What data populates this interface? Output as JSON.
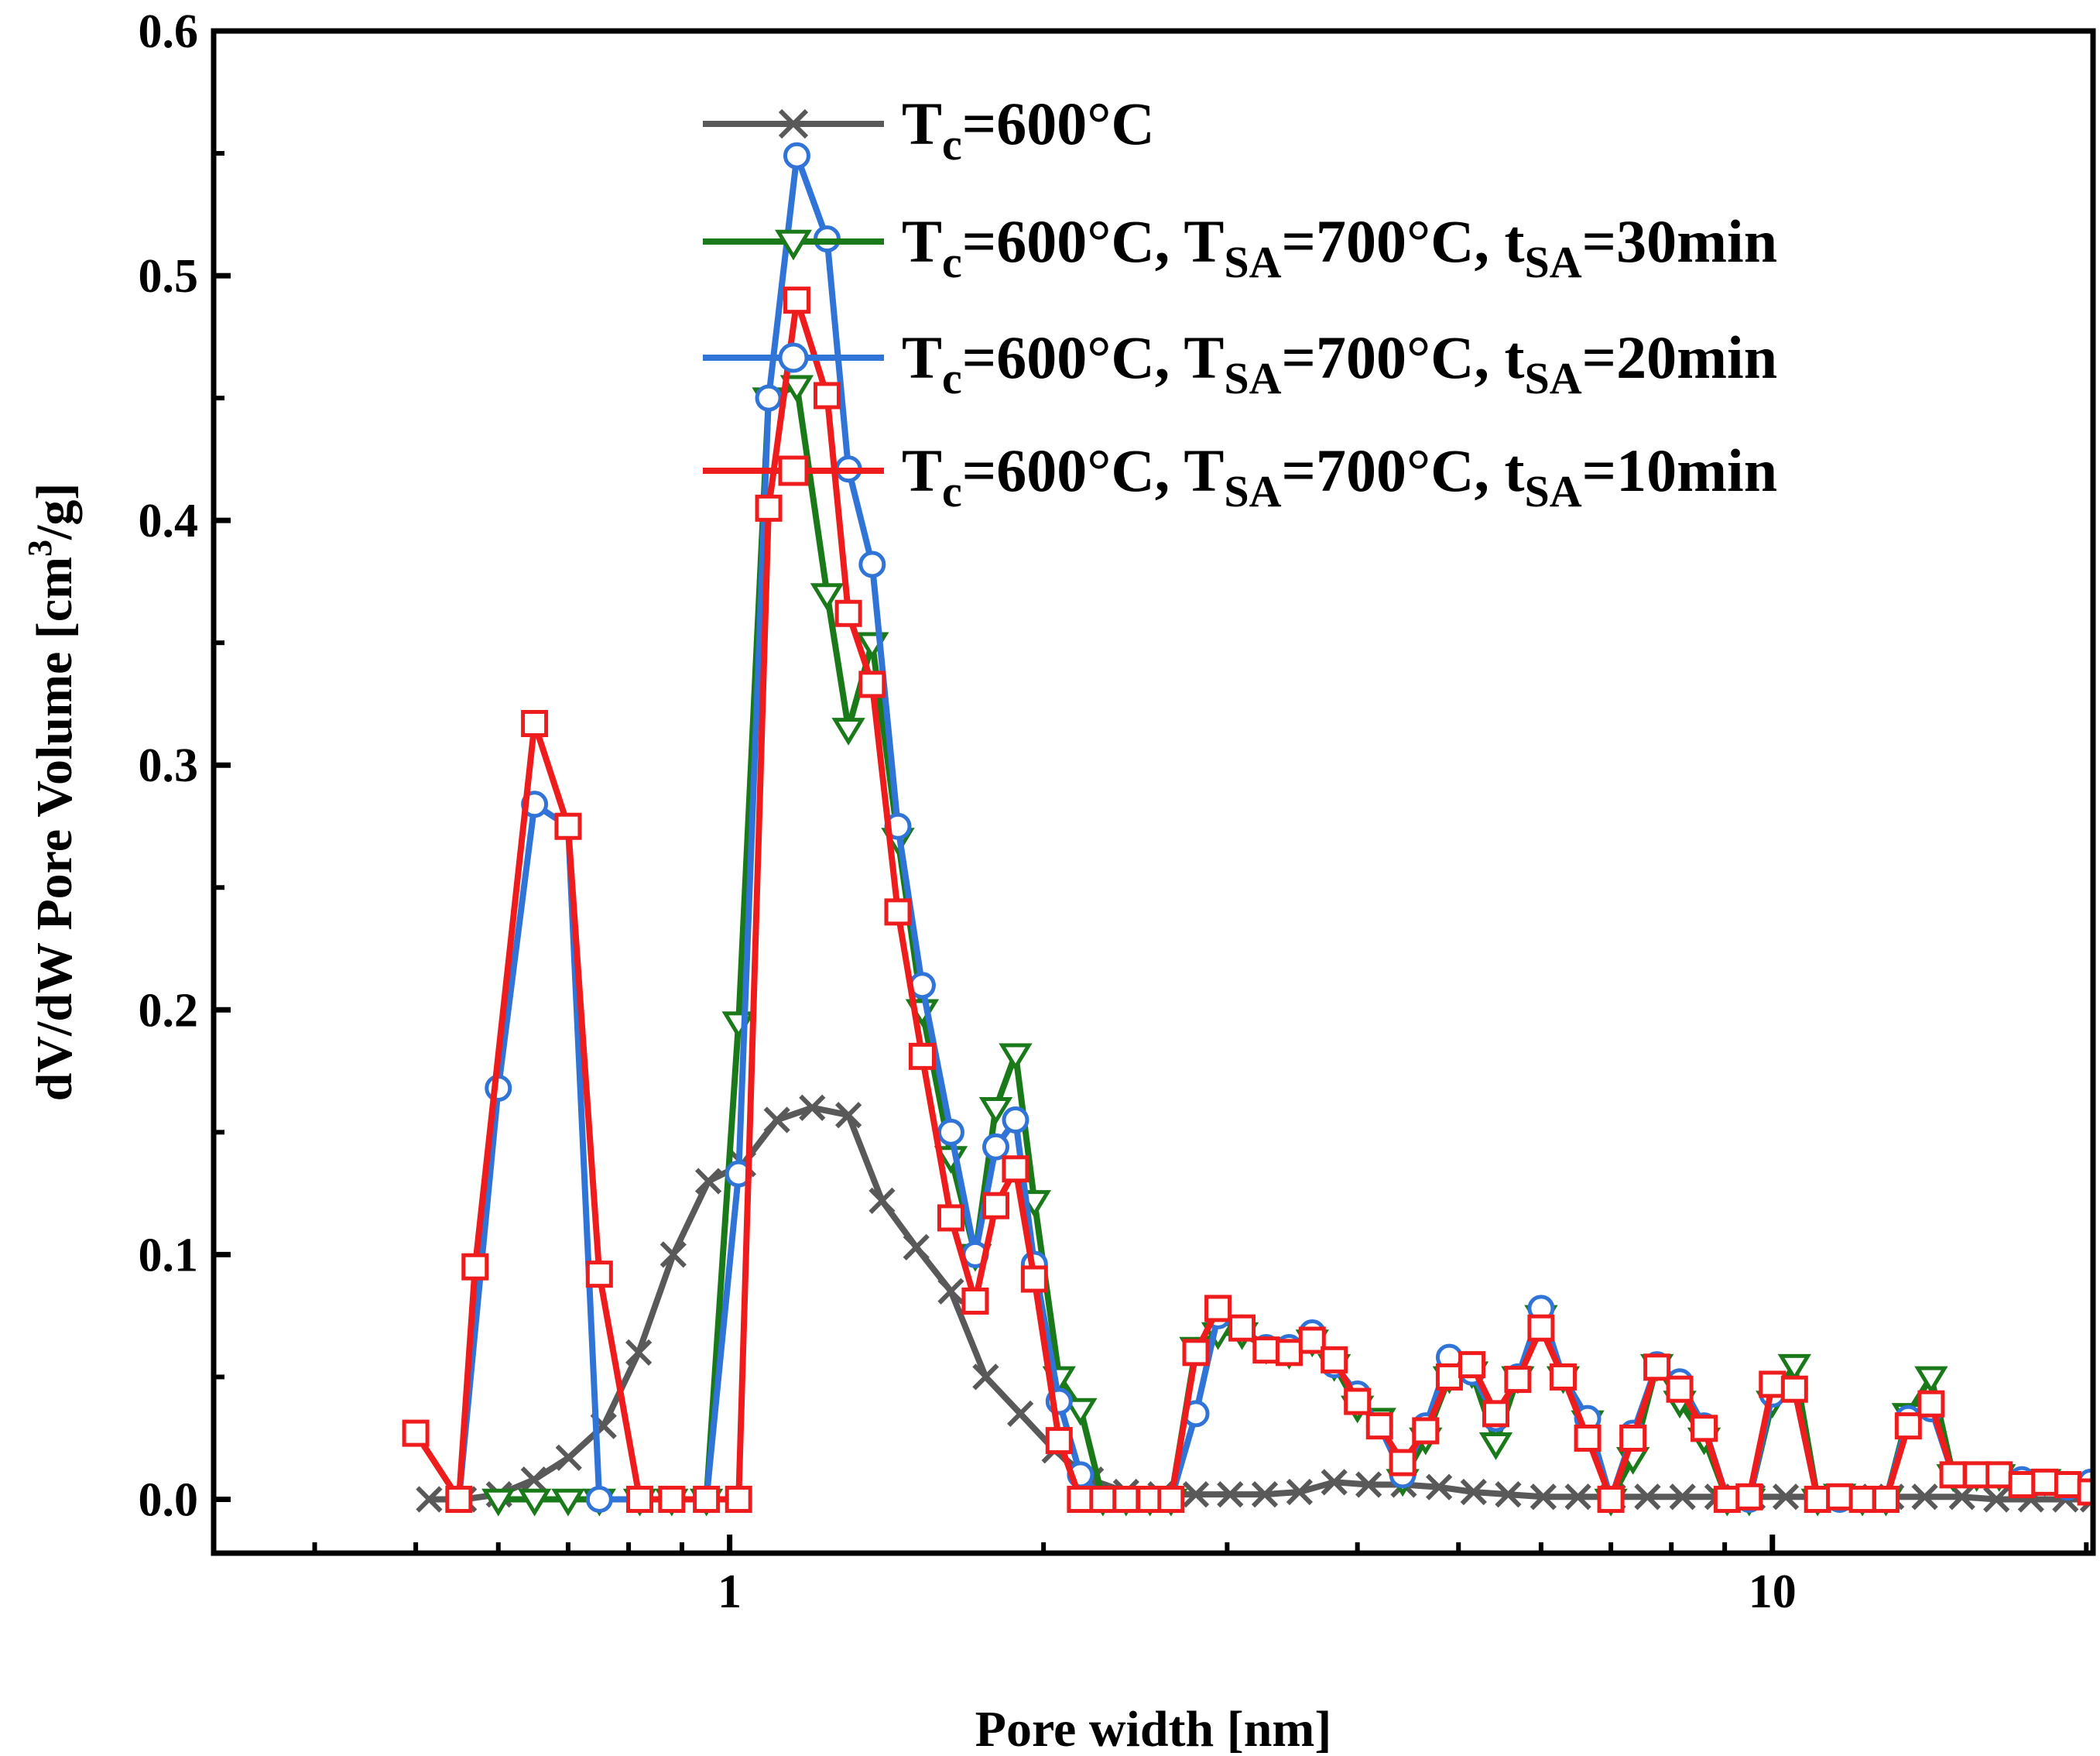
{
  "chart_data": {
    "type": "line",
    "title": "",
    "xlabel": "Pore width [nm]",
    "ylabel": "dV/dW Pore Volume [cm³/g]",
    "xscale": "log",
    "xlim": [
      0.32,
      20.3
    ],
    "ylim": [
      -0.022,
      0.6
    ],
    "yticks": [
      "0.0",
      "0.1",
      "0.2",
      "0.3",
      "0.4",
      "0.5",
      "0.6"
    ],
    "xticks": [
      "1",
      "10"
    ],
    "legend_position": "top-right",
    "series": [
      {
        "name": "T_c=600°C",
        "label": {
          "t1": "T",
          "s1": "c",
          "t2": "=600°C",
          "s2": "",
          "t3": "",
          "s3": "",
          "t4": ""
        },
        "color": "#595959",
        "marker": "x",
        "points": [
          [
            0.515,
            0.0
          ],
          [
            0.556,
            0.0
          ],
          [
            0.601,
            0.002
          ],
          [
            0.649,
            0.008
          ],
          [
            0.701,
            0.017
          ],
          [
            0.757,
            0.03
          ],
          [
            0.818,
            0.06
          ],
          [
            0.883,
            0.1
          ],
          [
            0.954,
            0.13
          ],
          [
            1.03,
            0.137
          ],
          [
            1.11,
            0.155
          ],
          [
            1.2,
            0.16
          ],
          [
            1.3,
            0.157
          ],
          [
            1.4,
            0.122
          ],
          [
            1.51,
            0.103
          ],
          [
            1.63,
            0.085
          ],
          [
            1.76,
            0.05
          ],
          [
            1.9,
            0.035
          ],
          [
            2.05,
            0.02
          ],
          [
            2.22,
            0.008
          ],
          [
            2.4,
            0.003
          ],
          [
            2.59,
            0.002
          ],
          [
            2.8,
            0.002
          ],
          [
            3.02,
            0.002
          ],
          [
            3.26,
            0.002
          ],
          [
            3.52,
            0.003
          ],
          [
            3.8,
            0.007
          ],
          [
            4.1,
            0.006
          ],
          [
            4.43,
            0.006
          ],
          [
            4.79,
            0.005
          ],
          [
            5.17,
            0.003
          ],
          [
            5.58,
            0.002
          ],
          [
            6.03,
            0.001
          ],
          [
            6.51,
            0.001
          ],
          [
            7.03,
            0.001
          ],
          [
            7.59,
            0.001
          ],
          [
            8.2,
            0.001
          ],
          [
            8.86,
            0.001
          ],
          [
            9.57,
            0.001
          ],
          [
            10.3,
            0.001
          ],
          [
            11.2,
            0.001
          ],
          [
            12.0,
            0.001
          ],
          [
            13.0,
            0.001
          ],
          [
            14.0,
            0.001
          ],
          [
            15.2,
            0.001
          ],
          [
            16.4,
            0.0
          ],
          [
            17.7,
            0.0
          ],
          [
            19.1,
            0.0
          ],
          [
            20.3,
            0.0
          ]
        ]
      },
      {
        "name": "T_c=600°C, T_SA=700°C, t_SA=30min",
        "label": {
          "t1": "T",
          "s1": "c",
          "t2": "=600°C, T",
          "s2": "SA",
          "t3": "=700°C,   t",
          "s3": "SA",
          "t4": "=30min"
        },
        "color": "#1a7a1a",
        "marker": "triangle-down",
        "points": [
          [
            0.6,
            0.0
          ],
          [
            0.65,
            0.0
          ],
          [
            0.7,
            0.0
          ],
          [
            0.75,
            0.0
          ],
          [
            0.82,
            0.0
          ],
          [
            0.88,
            0.0
          ],
          [
            0.95,
            0.0
          ],
          [
            1.02,
            0.195
          ],
          [
            1.09,
            0.45
          ],
          [
            1.16,
            0.455
          ],
          [
            1.24,
            0.37
          ],
          [
            1.3,
            0.315
          ],
          [
            1.37,
            0.35
          ],
          [
            1.45,
            0.27
          ],
          [
            1.53,
            0.2
          ],
          [
            1.63,
            0.14
          ],
          [
            1.72,
            0.1
          ],
          [
            1.8,
            0.16
          ],
          [
            1.88,
            0.182
          ],
          [
            1.96,
            0.122
          ],
          [
            2.07,
            0.05
          ],
          [
            2.17,
            0.037
          ],
          [
            2.28,
            0.0
          ],
          [
            2.4,
            0.0
          ],
          [
            2.53,
            0.0
          ],
          [
            2.65,
            0.0
          ],
          [
            2.8,
            0.062
          ],
          [
            2.94,
            0.068
          ],
          [
            3.1,
            0.068
          ],
          [
            3.27,
            0.062
          ],
          [
            3.44,
            0.06
          ],
          [
            3.62,
            0.065
          ],
          [
            3.8,
            0.055
          ],
          [
            4.0,
            0.038
          ],
          [
            4.2,
            0.033
          ],
          [
            4.42,
            0.008
          ],
          [
            4.65,
            0.025
          ],
          [
            4.9,
            0.05
          ],
          [
            5.15,
            0.052
          ],
          [
            5.43,
            0.023
          ],
          [
            5.7,
            0.05
          ],
          [
            6.0,
            0.075
          ],
          [
            6.3,
            0.05
          ],
          [
            6.65,
            0.032
          ],
          [
            7.0,
            0.0
          ],
          [
            7.35,
            0.017
          ],
          [
            7.75,
            0.055
          ],
          [
            8.15,
            0.04
          ],
          [
            8.6,
            0.025
          ],
          [
            9.05,
            0.0
          ],
          [
            9.5,
            0.0
          ],
          [
            10.0,
            0.04
          ],
          [
            10.5,
            0.055
          ],
          [
            11.05,
            0.0
          ],
          [
            11.6,
            0.002
          ],
          [
            12.2,
            0.0
          ],
          [
            12.85,
            0.0
          ],
          [
            13.5,
            0.035
          ],
          [
            14.2,
            0.05
          ],
          [
            14.9,
            0.01
          ],
          [
            15.7,
            0.01
          ],
          [
            16.5,
            0.01
          ],
          [
            17.35,
            0.008
          ],
          [
            18.25,
            0.008
          ],
          [
            19.2,
            0.006
          ],
          [
            20.2,
            0.005
          ]
        ]
      },
      {
        "name": "T_c=600°C, T_SA=700°C, t_SA=20min",
        "label": {
          "t1": "T",
          "s1": "c",
          "t2": "=600°C, T",
          "s2": "SA",
          "t3": "=700°C,   t",
          "s3": "SA",
          "t4": "=20min"
        },
        "color": "#2f74d6",
        "marker": "circle",
        "points": [
          [
            0.55,
            0.0
          ],
          [
            0.6,
            0.168
          ],
          [
            0.65,
            0.284
          ],
          [
            0.7,
            0.275
          ],
          [
            0.75,
            0.0
          ],
          [
            0.82,
            0.0
          ],
          [
            0.88,
            0.0
          ],
          [
            0.95,
            0.0
          ],
          [
            1.02,
            0.133
          ],
          [
            1.09,
            0.45
          ],
          [
            1.16,
            0.549
          ],
          [
            1.24,
            0.515
          ],
          [
            1.3,
            0.421
          ],
          [
            1.37,
            0.382
          ],
          [
            1.45,
            0.275
          ],
          [
            1.53,
            0.21
          ],
          [
            1.63,
            0.15
          ],
          [
            1.72,
            0.1
          ],
          [
            1.8,
            0.144
          ],
          [
            1.88,
            0.155
          ],
          [
            1.96,
            0.096
          ],
          [
            2.07,
            0.04
          ],
          [
            2.17,
            0.01
          ],
          [
            2.28,
            0.0
          ],
          [
            2.4,
            0.0
          ],
          [
            2.53,
            0.0
          ],
          [
            2.65,
            0.0
          ],
          [
            2.8,
            0.035
          ],
          [
            2.94,
            0.075
          ],
          [
            3.1,
            0.07
          ],
          [
            3.27,
            0.062
          ],
          [
            3.44,
            0.062
          ],
          [
            3.62,
            0.068
          ],
          [
            3.8,
            0.055
          ],
          [
            4.0,
            0.043
          ],
          [
            4.2,
            0.03
          ],
          [
            4.42,
            0.01
          ],
          [
            4.65,
            0.03
          ],
          [
            4.9,
            0.058
          ],
          [
            5.15,
            0.052
          ],
          [
            5.43,
            0.033
          ],
          [
            5.7,
            0.05
          ],
          [
            6.0,
            0.078
          ],
          [
            6.3,
            0.05
          ],
          [
            6.65,
            0.033
          ],
          [
            7.0,
            0.0
          ],
          [
            7.35,
            0.027
          ],
          [
            7.75,
            0.055
          ],
          [
            8.15,
            0.048
          ],
          [
            8.6,
            0.03
          ],
          [
            9.05,
            0.0
          ],
          [
            9.5,
            0.0
          ],
          [
            10.0,
            0.043
          ],
          [
            10.5,
            0.045
          ],
          [
            11.05,
            0.0
          ],
          [
            11.6,
            0.0
          ],
          [
            12.2,
            0.0
          ],
          [
            12.85,
            0.0
          ],
          [
            13.5,
            0.033
          ],
          [
            14.2,
            0.037
          ],
          [
            14.9,
            0.01
          ],
          [
            15.7,
            0.01
          ],
          [
            16.5,
            0.01
          ],
          [
            17.35,
            0.008
          ],
          [
            18.25,
            0.007
          ],
          [
            19.2,
            0.005
          ],
          [
            20.2,
            0.007
          ]
        ]
      },
      {
        "name": "T_c=600°C, T_SA=700°C, t_SA=10min",
        "label": {
          "t1": "T",
          "s1": "c",
          "t2": "=600°C, T",
          "s2": "SA",
          "t3": "=700°C,   t",
          "s3": "SA",
          "t4": "=10min"
        },
        "color": "#ee1c1c",
        "marker": "square",
        "points": [
          [
            0.5,
            0.027
          ],
          [
            0.55,
            0.0
          ],
          [
            0.57,
            0.095
          ],
          [
            0.65,
            0.317
          ],
          [
            0.7,
            0.275
          ],
          [
            0.75,
            0.092
          ],
          [
            0.82,
            0.0
          ],
          [
            0.88,
            0.0
          ],
          [
            0.95,
            0.0
          ],
          [
            1.02,
            0.0
          ],
          [
            1.09,
            0.405
          ],
          [
            1.16,
            0.49
          ],
          [
            1.24,
            0.451
          ],
          [
            1.3,
            0.362
          ],
          [
            1.37,
            0.333
          ],
          [
            1.45,
            0.24
          ],
          [
            1.53,
            0.181
          ],
          [
            1.63,
            0.115
          ],
          [
            1.72,
            0.081
          ],
          [
            1.8,
            0.12
          ],
          [
            1.88,
            0.135
          ],
          [
            1.96,
            0.09
          ],
          [
            2.07,
            0.024
          ],
          [
            2.17,
            0.0
          ],
          [
            2.28,
            0.0
          ],
          [
            2.4,
            0.0
          ],
          [
            2.53,
            0.0
          ],
          [
            2.65,
            0.0
          ],
          [
            2.8,
            0.06
          ],
          [
            2.94,
            0.078
          ],
          [
            3.1,
            0.07
          ],
          [
            3.27,
            0.061
          ],
          [
            3.44,
            0.06
          ],
          [
            3.62,
            0.065
          ],
          [
            3.8,
            0.057
          ],
          [
            4.0,
            0.04
          ],
          [
            4.2,
            0.03
          ],
          [
            4.42,
            0.015
          ],
          [
            4.65,
            0.028
          ],
          [
            4.9,
            0.05
          ],
          [
            5.15,
            0.055
          ],
          [
            5.43,
            0.035
          ],
          [
            5.7,
            0.049
          ],
          [
            6.0,
            0.07
          ],
          [
            6.3,
            0.05
          ],
          [
            6.65,
            0.025
          ],
          [
            7.0,
            0.0
          ],
          [
            7.35,
            0.025
          ],
          [
            7.75,
            0.054
          ],
          [
            8.15,
            0.045
          ],
          [
            8.6,
            0.029
          ],
          [
            9.05,
            0.0
          ],
          [
            9.5,
            0.001
          ],
          [
            10.0,
            0.047
          ],
          [
            10.5,
            0.045
          ],
          [
            11.05,
            0.0
          ],
          [
            11.6,
            0.001
          ],
          [
            12.2,
            0.0
          ],
          [
            12.85,
            0.0
          ],
          [
            13.5,
            0.03
          ],
          [
            14.2,
            0.039
          ],
          [
            14.9,
            0.01
          ],
          [
            15.7,
            0.01
          ],
          [
            16.5,
            0.01
          ],
          [
            17.35,
            0.006
          ],
          [
            18.25,
            0.007
          ],
          [
            19.2,
            0.006
          ],
          [
            20.2,
            0.003
          ]
        ]
      }
    ]
  }
}
